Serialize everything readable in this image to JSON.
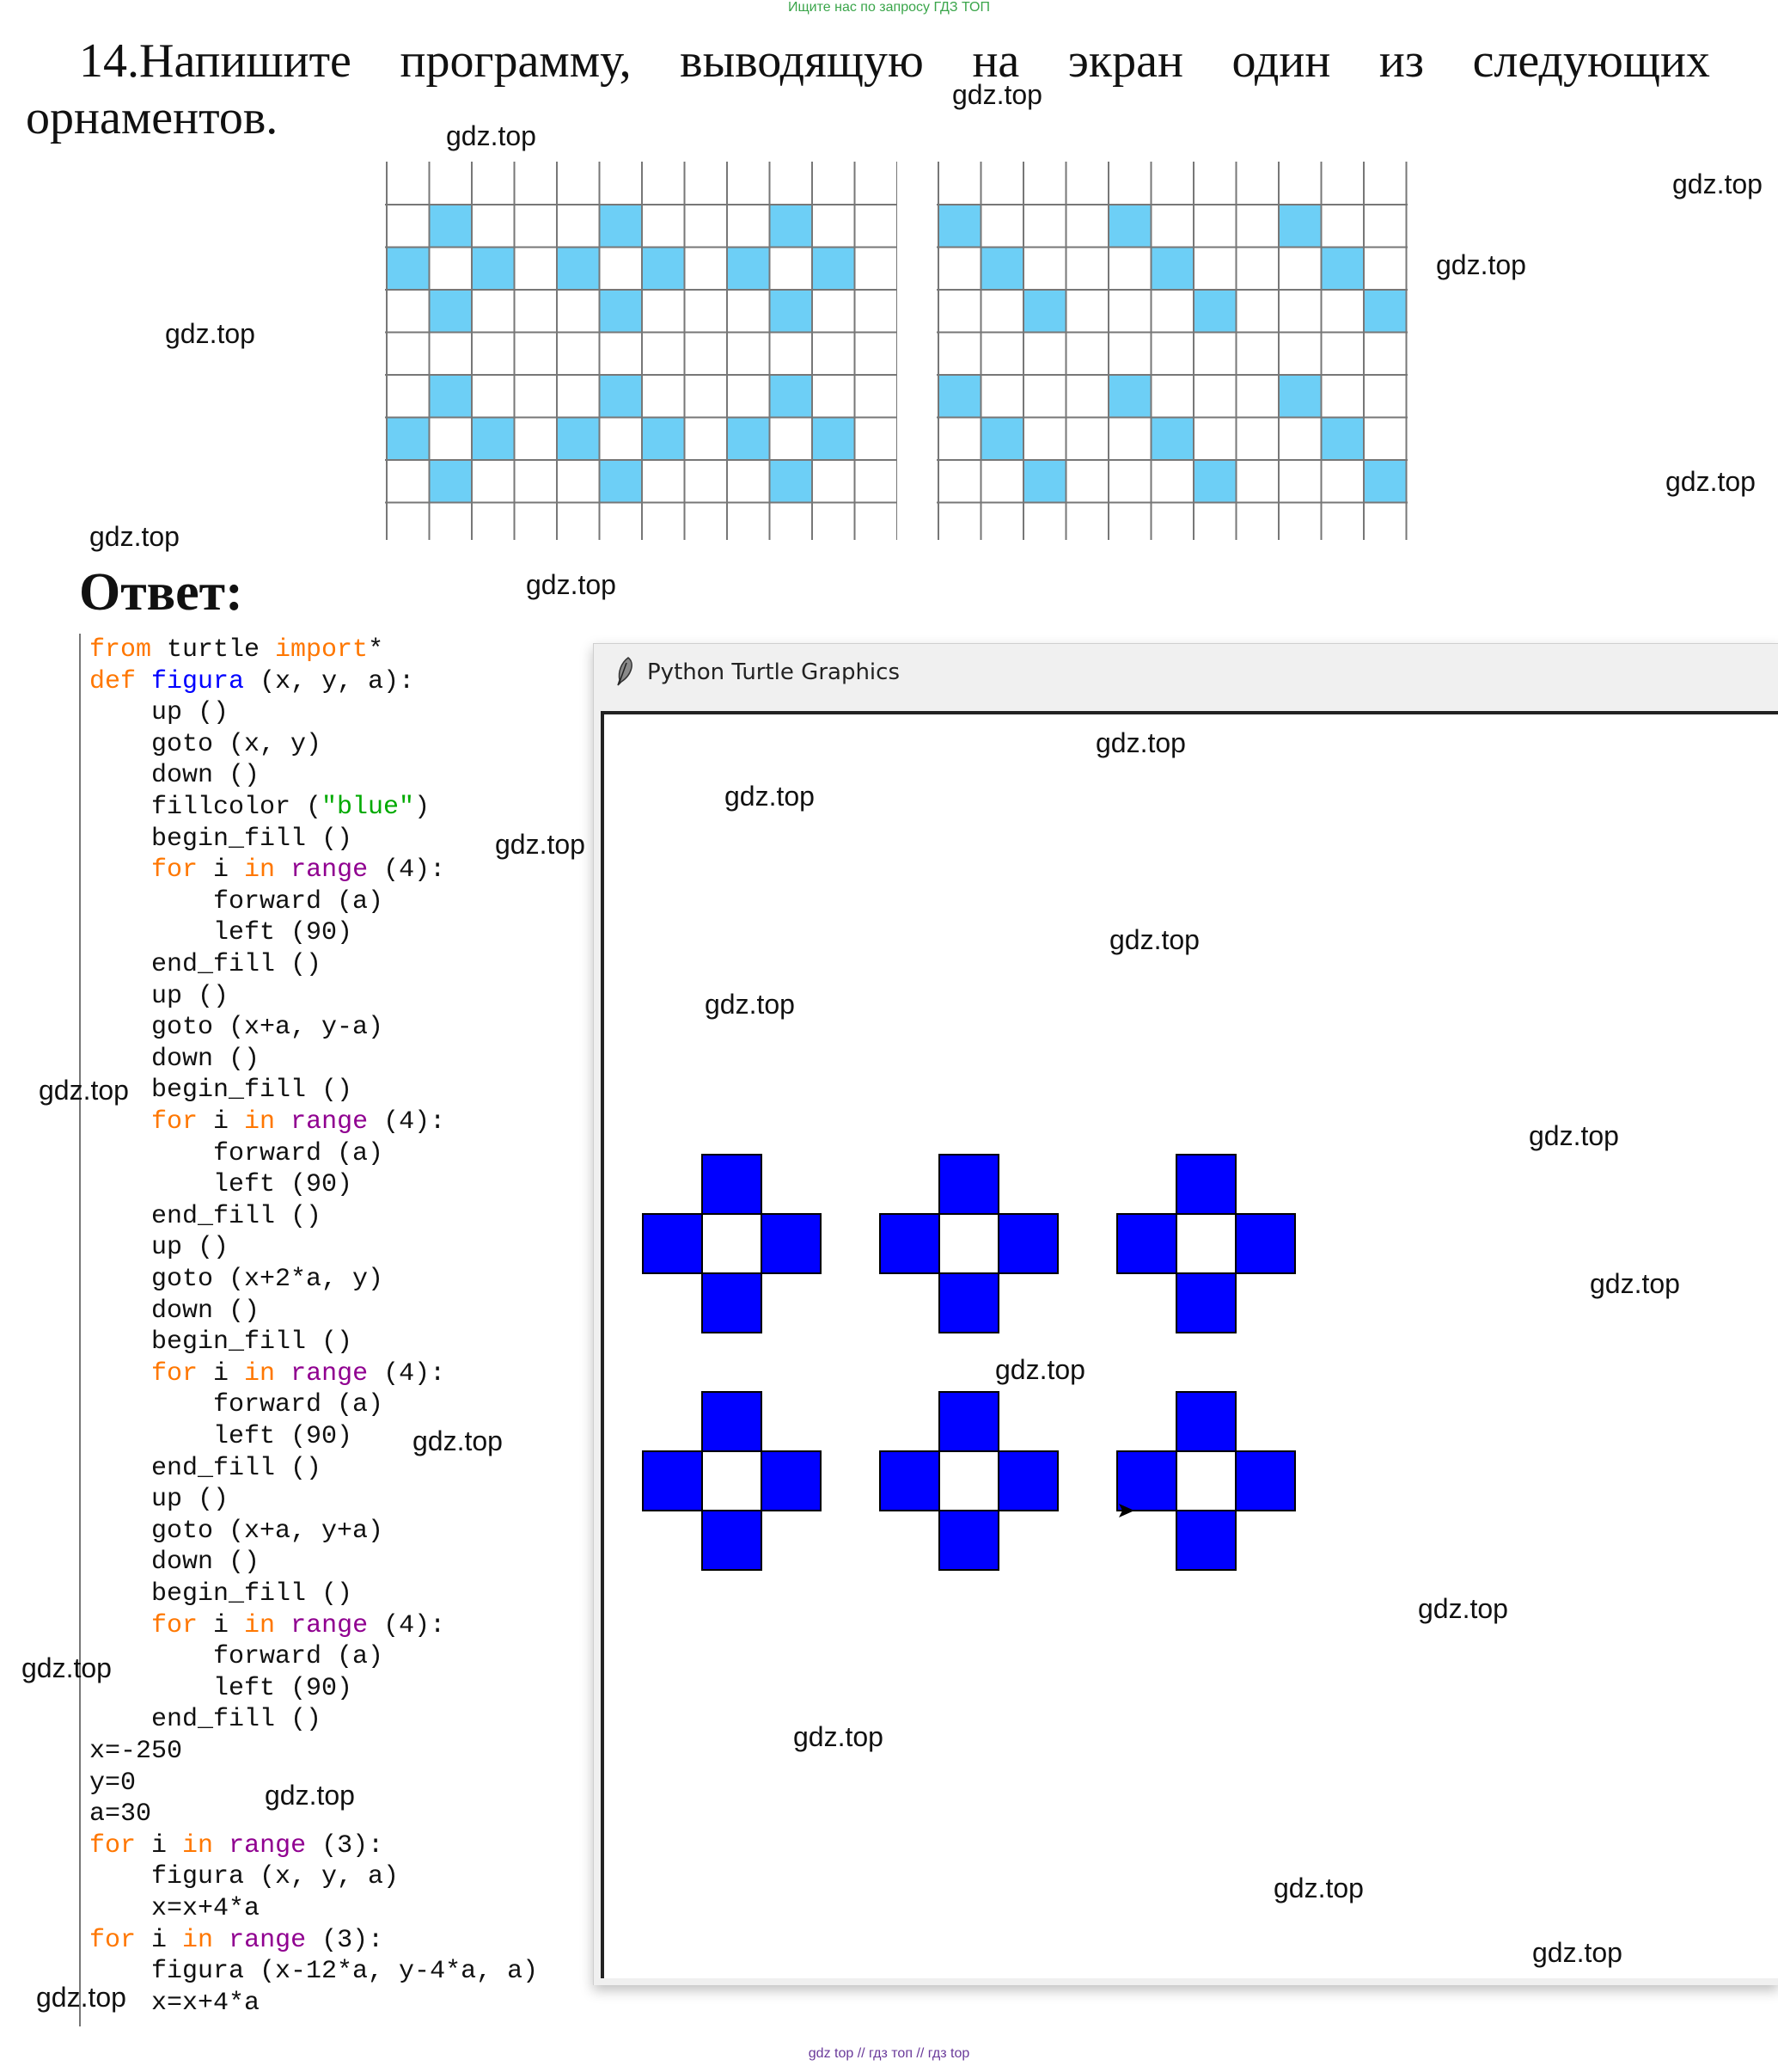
{
  "banner": "Ищите нас по запросу ГДЗ ТОП",
  "task": {
    "line1_words": [
      "14.Напишите",
      "программу,",
      "выводящую",
      "на",
      "экран",
      "один",
      "из",
      "следующих"
    ],
    "line2": "орнаментов."
  },
  "answer_label": "Ответ:",
  "code": [
    [
      [
        "from",
        "kw"
      ],
      [
        " turtle ",
        ""
      ],
      [
        "import",
        "kw"
      ],
      [
        "*",
        ""
      ]
    ],
    [
      [
        "def",
        "kw"
      ],
      [
        " ",
        ""
      ],
      [
        "figura",
        "fn"
      ],
      [
        " (x, y, a):",
        ""
      ]
    ],
    [
      [
        "    up ()",
        ""
      ]
    ],
    [
      [
        "    goto (x, y)",
        ""
      ]
    ],
    [
      [
        "    down ()",
        ""
      ]
    ],
    [
      [
        "    fillcolor (",
        ""
      ],
      [
        "\"blue\"",
        "str"
      ],
      [
        ")",
        ""
      ]
    ],
    [
      [
        "    begin_fill ()",
        ""
      ]
    ],
    [
      [
        "    ",
        ""
      ],
      [
        "for",
        "kw"
      ],
      [
        " i ",
        ""
      ],
      [
        "in",
        "kw"
      ],
      [
        " ",
        ""
      ],
      [
        "range",
        "bi"
      ],
      [
        " (4):",
        ""
      ]
    ],
    [
      [
        "        forward (a)",
        ""
      ]
    ],
    [
      [
        "        left (90)",
        ""
      ]
    ],
    [
      [
        "    end_fill ()",
        ""
      ]
    ],
    [
      [
        "    up ()",
        ""
      ]
    ],
    [
      [
        "    goto (x+a, y-a)",
        ""
      ]
    ],
    [
      [
        "    down ()",
        ""
      ]
    ],
    [
      [
        "    begin_fill ()",
        ""
      ]
    ],
    [
      [
        "    ",
        ""
      ],
      [
        "for",
        "kw"
      ],
      [
        " i ",
        ""
      ],
      [
        "in",
        "kw"
      ],
      [
        " ",
        ""
      ],
      [
        "range",
        "bi"
      ],
      [
        " (4):",
        ""
      ]
    ],
    [
      [
        "        forward (a)",
        ""
      ]
    ],
    [
      [
        "        left (90)",
        ""
      ]
    ],
    [
      [
        "    end_fill ()",
        ""
      ]
    ],
    [
      [
        "    up ()",
        ""
      ]
    ],
    [
      [
        "    goto (x+2*a, y)",
        ""
      ]
    ],
    [
      [
        "    down ()",
        ""
      ]
    ],
    [
      [
        "    begin_fill ()",
        ""
      ]
    ],
    [
      [
        "    ",
        ""
      ],
      [
        "for",
        "kw"
      ],
      [
        " i ",
        ""
      ],
      [
        "in",
        "kw"
      ],
      [
        " ",
        ""
      ],
      [
        "range",
        "bi"
      ],
      [
        " (4):",
        ""
      ]
    ],
    [
      [
        "        forward (a)",
        ""
      ]
    ],
    [
      [
        "        left (90)",
        ""
      ]
    ],
    [
      [
        "    end_fill ()",
        ""
      ]
    ],
    [
      [
        "    up ()",
        ""
      ]
    ],
    [
      [
        "    goto (x+a, y+a)",
        ""
      ]
    ],
    [
      [
        "    down ()",
        ""
      ]
    ],
    [
      [
        "    begin_fill ()",
        ""
      ]
    ],
    [
      [
        "    ",
        ""
      ],
      [
        "for",
        "kw"
      ],
      [
        " i ",
        ""
      ],
      [
        "in",
        "kw"
      ],
      [
        " ",
        ""
      ],
      [
        "range",
        "bi"
      ],
      [
        " (4):",
        ""
      ]
    ],
    [
      [
        "        forward (a)",
        ""
      ]
    ],
    [
      [
        "        left (90)",
        ""
      ]
    ],
    [
      [
        "    end_fill ()",
        ""
      ]
    ],
    [
      [
        "x=-250",
        ""
      ]
    ],
    [
      [
        "y=0",
        ""
      ]
    ],
    [
      [
        "a=30",
        ""
      ]
    ],
    [
      [
        "for",
        "kw"
      ],
      [
        " i ",
        ""
      ],
      [
        "in",
        "kw"
      ],
      [
        " ",
        ""
      ],
      [
        "range",
        "bi"
      ],
      [
        " (3):",
        ""
      ]
    ],
    [
      [
        "    figura (x, y, a)",
        ""
      ]
    ],
    [
      [
        "    x=x+4*a",
        ""
      ]
    ],
    [
      [
        "for",
        "kw"
      ],
      [
        " i ",
        ""
      ],
      [
        "in",
        "kw"
      ],
      [
        " ",
        ""
      ],
      [
        "range",
        "bi"
      ],
      [
        " (3):",
        ""
      ]
    ],
    [
      [
        "    figura (x-12*a, y-4*a, a)",
        ""
      ]
    ],
    [
      [
        "    x=x+4*a",
        ""
      ]
    ]
  ],
  "turtle_window": {
    "title": "Python Turtle Graphics",
    "fill_color": "#0000ff",
    "icon": "feather-icon"
  },
  "ornament_fill_color": "#6dcff6",
  "watermark": "gdz.top",
  "footer": "gdz top // гдз топ // гдз top"
}
